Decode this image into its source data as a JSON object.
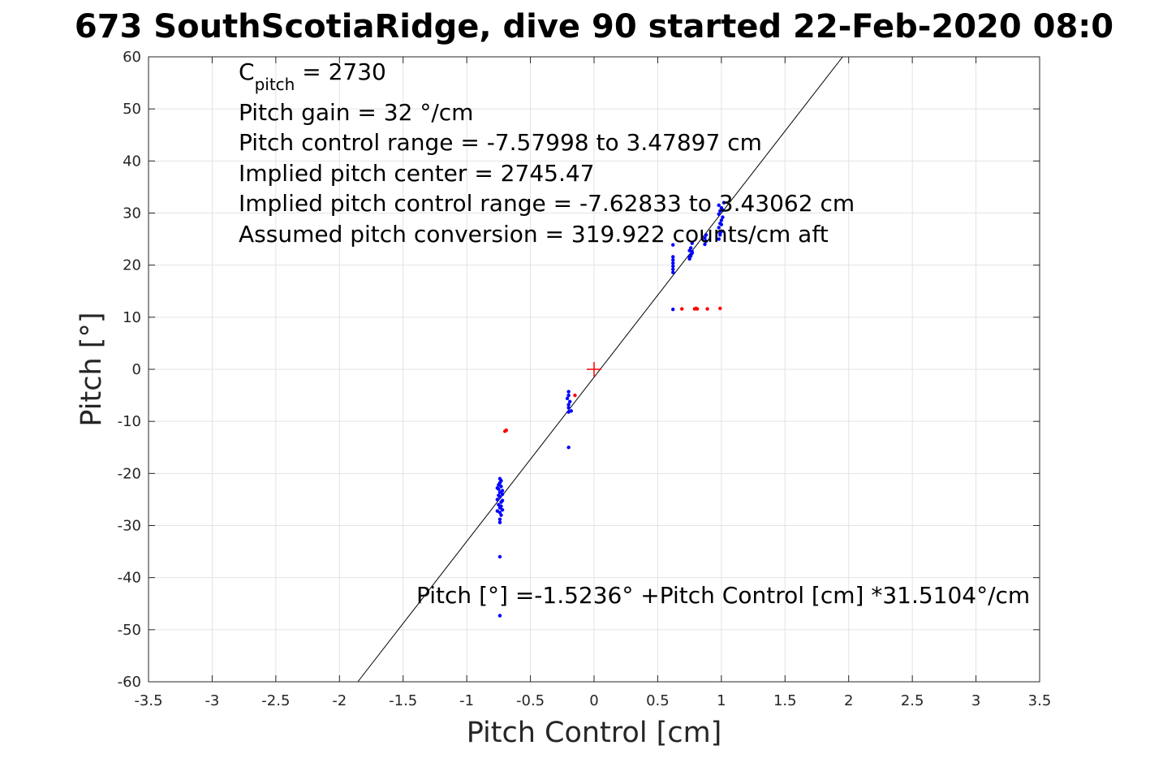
{
  "chart_data": {
    "type": "scatter",
    "title": "673 SouthScotiaRidge, dive 90 started 22-Feb-2020 08:0",
    "xlabel": "Pitch Control [cm]",
    "ylabel": "Pitch [°]",
    "xlim": [
      -3.5,
      3.5
    ],
    "ylim": [
      -60,
      60
    ],
    "xticks": [
      -3.5,
      -3,
      -2.5,
      -2,
      -1.5,
      -1,
      -0.5,
      0,
      0.5,
      1,
      1.5,
      2,
      2.5,
      3,
      3.5
    ],
    "yticks": [
      -60,
      -50,
      -40,
      -30,
      -20,
      -10,
      0,
      10,
      20,
      30,
      40,
      50,
      60
    ],
    "grid": true,
    "annotations": {
      "c_pitch_main": "C",
      "c_pitch_sub": "pitch",
      "c_pitch_value": " = 2730",
      "pitch_gain": "Pitch gain = 32 °/cm",
      "pitch_control_range": "Pitch control range = -7.57998 to 3.47897 cm",
      "implied_pitch_center": "Implied pitch center = 2745.47",
      "implied_pitch_control_range": "Implied pitch control range = -7.62833 to 3.43062 cm",
      "assumed_pitch_conversion": "Assumed pitch conversion = 319.922 counts/cm aft",
      "fit_equation": "Pitch [°] =-1.5236° +Pitch Control [cm] *31.5104°/cm"
    },
    "fit_line": {
      "intercept": -1.5236,
      "slope": 31.5104,
      "color": "#000000"
    },
    "center_marker": {
      "x": 0,
      "y": 0,
      "color": "#ff0000"
    },
    "series": [
      {
        "color": "#0000ff",
        "points": [
          [
            -0.74,
            -21
          ],
          [
            -0.74,
            -21.8
          ],
          [
            -0.73,
            -22.5
          ],
          [
            -0.75,
            -23
          ],
          [
            -0.74,
            -23.6
          ],
          [
            -0.72,
            -24
          ],
          [
            -0.74,
            -24.5
          ],
          [
            -0.76,
            -25
          ],
          [
            -0.73,
            -25.5
          ],
          [
            -0.75,
            -26
          ],
          [
            -0.74,
            -26.6
          ],
          [
            -0.72,
            -27
          ],
          [
            -0.74,
            -27.5
          ],
          [
            -0.73,
            -28
          ],
          [
            -0.74,
            -28.8
          ],
          [
            -0.74,
            -29.4
          ],
          [
            -0.76,
            -22.8
          ],
          [
            -0.72,
            -23.3
          ],
          [
            -0.75,
            -24.2
          ],
          [
            -0.73,
            -26.3
          ],
          [
            -0.76,
            -27.2
          ],
          [
            -0.72,
            -25.2
          ],
          [
            -0.75,
            -22.2
          ],
          [
            -0.73,
            -21.4
          ],
          [
            -0.74,
            -36
          ],
          [
            -0.74,
            -47.3
          ],
          [
            -0.2,
            -4.3
          ],
          [
            -0.2,
            -5
          ],
          [
            -0.21,
            -5.6
          ],
          [
            -0.19,
            -6.2
          ],
          [
            -0.2,
            -6.8
          ],
          [
            -0.2,
            -7.4
          ],
          [
            -0.18,
            -8
          ],
          [
            -0.2,
            -8.2
          ],
          [
            -0.2,
            -15
          ],
          [
            0.62,
            18.6
          ],
          [
            0.62,
            19.2
          ],
          [
            0.62,
            19.8
          ],
          [
            0.62,
            20.4
          ],
          [
            0.62,
            21
          ],
          [
            0.62,
            21.6
          ],
          [
            0.62,
            23.9
          ],
          [
            0.62,
            11.5
          ],
          [
            0.75,
            21.2
          ],
          [
            0.76,
            21.8
          ],
          [
            0.77,
            22.3
          ],
          [
            0.75,
            22.8
          ],
          [
            0.76,
            23.3
          ],
          [
            0.77,
            24.2
          ],
          [
            0.75,
            21.5
          ],
          [
            0.77,
            22.6
          ],
          [
            0.87,
            24
          ],
          [
            0.88,
            24.6
          ],
          [
            0.87,
            25.2
          ],
          [
            0.88,
            25.8
          ],
          [
            0.98,
            25
          ],
          [
            0.99,
            25.8
          ],
          [
            1.0,
            26.5
          ],
          [
            0.98,
            27.2
          ],
          [
            0.99,
            28
          ],
          [
            1.0,
            28.6
          ],
          [
            1.01,
            29.2
          ],
          [
            0.98,
            29.8
          ],
          [
            0.99,
            30.4
          ],
          [
            1.0,
            31
          ],
          [
            0.98,
            31.5
          ],
          [
            1.02,
            32
          ],
          [
            1.0,
            27.8
          ],
          [
            0.99,
            26.1
          ],
          [
            1.01,
            30.6
          ]
        ]
      },
      {
        "color": "#ff0000",
        "points": [
          [
            -0.69,
            -11.7
          ],
          [
            -0.7,
            -11.9
          ],
          [
            -0.15,
            -5
          ],
          [
            0.69,
            11.6
          ],
          [
            0.79,
            11.6
          ],
          [
            0.8,
            11.7
          ],
          [
            0.81,
            11.6
          ],
          [
            0.89,
            11.6
          ],
          [
            0.99,
            11.7
          ]
        ]
      }
    ]
  }
}
